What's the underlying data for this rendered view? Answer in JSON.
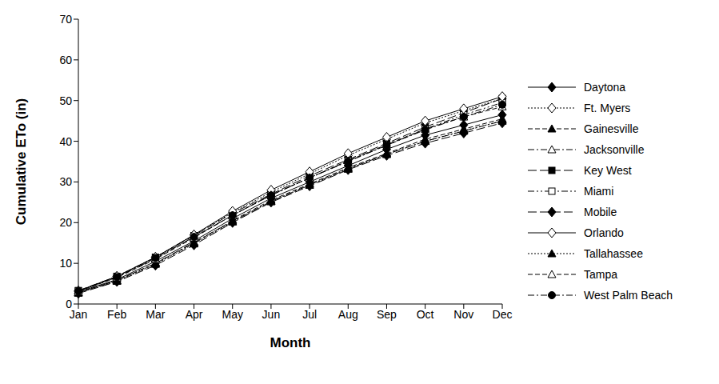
{
  "chart_data": {
    "type": "line",
    "x_label": "Month",
    "y_label": "Cumulative ETo (in)",
    "categories": [
      "Jan",
      "Feb",
      "Mar",
      "Apr",
      "May",
      "Jun",
      "Jul",
      "Aug",
      "Sep",
      "Oct",
      "Nov",
      "Dec"
    ],
    "ylim": [
      0,
      70
    ],
    "yticks": [
      0,
      10,
      20,
      30,
      40,
      50,
      60,
      70
    ],
    "grid": false,
    "legend": "right",
    "series": [
      {
        "name": "Daytona",
        "color": "#000000",
        "marker": "diamond",
        "line_style": "solid",
        "values": [
          3,
          6,
          10.5,
          15.5,
          21,
          26,
          30,
          34,
          38,
          41.5,
          44,
          46.5
        ]
      },
      {
        "name": "Ft. Myers",
        "color": "#000000",
        "marker": "open_diamond",
        "line_style": "dotted",
        "values": [
          3.2,
          6.8,
          11.5,
          17,
          22.5,
          27.5,
          32,
          36.5,
          40.5,
          44.5,
          47.5,
          50.5
        ]
      },
      {
        "name": "Gainesville",
        "color": "#000000",
        "marker": "triangle",
        "line_style": "dashed",
        "values": [
          2.8,
          5.8,
          10,
          15,
          20.5,
          25.5,
          29.5,
          33.5,
          37,
          40.5,
          43,
          45.5
        ]
      },
      {
        "name": "Jacksonville",
        "color": "#000000",
        "marker": "open_triangle",
        "line_style": "dashdot",
        "values": [
          2.8,
          5.8,
          10,
          15.2,
          20.3,
          25.2,
          29.3,
          33.2,
          36.8,
          40,
          42.5,
          45
        ]
      },
      {
        "name": "Key West",
        "color": "#000000",
        "marker": "square",
        "line_style": "longdash",
        "values": [
          3.3,
          6.8,
          11.5,
          16.8,
          22.3,
          27,
          31.5,
          35.5,
          39.5,
          43.5,
          47,
          50.5
        ]
      },
      {
        "name": "Miami",
        "color": "#000000",
        "marker": "open_square",
        "line_style": "dashdotdot",
        "values": [
          3.2,
          6.6,
          11.2,
          16.5,
          21.8,
          26.8,
          31,
          35.2,
          39,
          43,
          46.5,
          49.5
        ]
      },
      {
        "name": "Mobile",
        "color": "#000000",
        "marker": "diamond",
        "line_style": "longdash",
        "values": [
          2.6,
          5.5,
          9.5,
          14.5,
          20,
          25,
          29,
          33,
          36.5,
          39.5,
          42,
          44.5
        ]
      },
      {
        "name": "Orlando",
        "color": "#000000",
        "marker": "open_diamond",
        "line_style": "solid",
        "values": [
          3.2,
          6.8,
          11.5,
          17,
          22.8,
          28,
          32.5,
          37,
          41,
          45,
          48,
          51
        ]
      },
      {
        "name": "Tallahassee",
        "color": "#000000",
        "marker": "triangle",
        "line_style": "dotted",
        "values": [
          2.7,
          5.6,
          9.8,
          14.8,
          20.2,
          25.2,
          29.2,
          33.2,
          36.8,
          40,
          42.6,
          45
        ]
      },
      {
        "name": "Tampa",
        "color": "#000000",
        "marker": "open_triangle",
        "line_style": "dashed",
        "values": [
          3.1,
          6.5,
          11,
          16.3,
          21.8,
          26.8,
          31,
          35.2,
          39.2,
          43,
          46,
          48.5
        ]
      },
      {
        "name": "West Palm Beach",
        "color": "#000000",
        "marker": "circle",
        "line_style": "dashdot",
        "values": [
          3.2,
          6.6,
          11.3,
          16.5,
          21.8,
          26.7,
          31,
          35,
          39,
          42.8,
          46,
          49
        ]
      }
    ]
  }
}
